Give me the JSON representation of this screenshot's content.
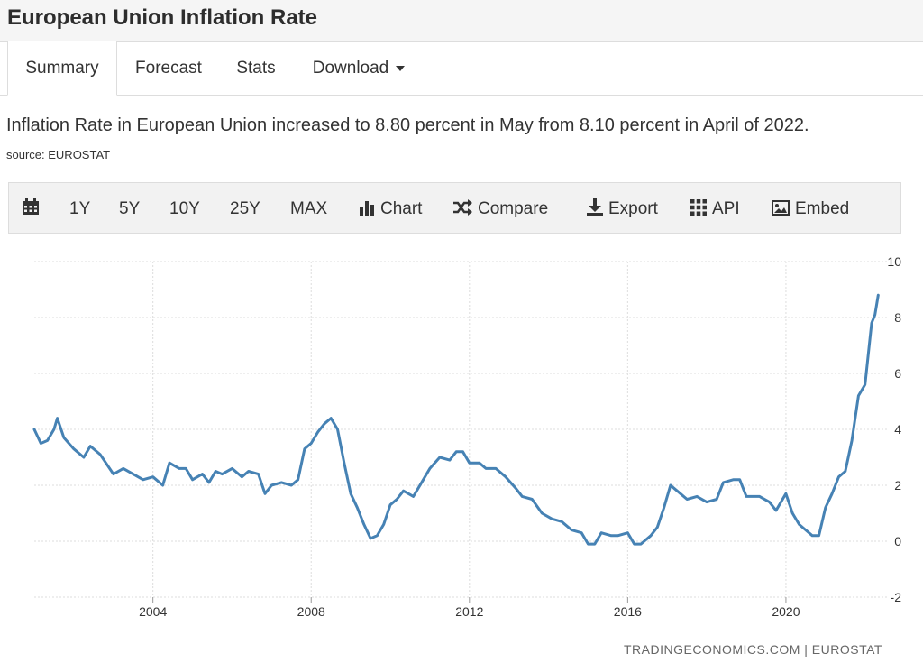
{
  "page_title": "European Union Inflation Rate",
  "tabs": [
    {
      "label": "Summary",
      "active": true
    },
    {
      "label": "Forecast"
    },
    {
      "label": "Stats"
    },
    {
      "label": "Download",
      "dropdown": true
    }
  ],
  "summary_text": "Inflation Rate in European Union increased to 8.80 percent in May from 8.10 percent in April of 2022.",
  "source_text": "source: EUROSTAT",
  "toolbar": {
    "calendar_icon": "calendar-icon",
    "ranges": [
      "1Y",
      "5Y",
      "10Y",
      "25Y",
      "MAX"
    ],
    "chart_label": "Chart",
    "compare_label": "Compare",
    "export_label": "Export",
    "api_label": "API",
    "embed_label": "Embed"
  },
  "credit": "TRADINGECONOMICS.COM | EUROSTAT",
  "colors": {
    "line": "#4682b4",
    "grid": "#dddddd",
    "toolbar_bg": "#f2f2f2"
  },
  "chart_data": {
    "type": "line",
    "title": "",
    "xlabel": "",
    "ylabel": "",
    "x_ticks": [
      "2004",
      "2008",
      "2012",
      "2016",
      "2020"
    ],
    "y_ticks": [
      -2,
      0,
      2,
      4,
      6,
      8,
      10
    ],
    "ylim": [
      -2,
      10
    ],
    "xlim": [
      "2001-01",
      "2022-06"
    ],
    "grid": true,
    "y_axis_position": "right",
    "series": [
      {
        "values": [
          [
            "2001-01",
            4.0
          ],
          [
            "2001-03",
            3.5
          ],
          [
            "2001-05",
            3.6
          ],
          [
            "2001-07",
            4.0
          ],
          [
            "2001-08",
            4.4
          ],
          [
            "2001-10",
            3.7
          ],
          [
            "2002-01",
            3.3
          ],
          [
            "2002-04",
            3.0
          ],
          [
            "2002-06",
            3.4
          ],
          [
            "2002-09",
            3.1
          ],
          [
            "2003-01",
            2.4
          ],
          [
            "2003-04",
            2.6
          ],
          [
            "2003-07",
            2.4
          ],
          [
            "2003-10",
            2.2
          ],
          [
            "2004-01",
            2.3
          ],
          [
            "2004-04",
            2.0
          ],
          [
            "2004-06",
            2.8
          ],
          [
            "2004-09",
            2.6
          ],
          [
            "2004-11",
            2.6
          ],
          [
            "2005-01",
            2.2
          ],
          [
            "2005-04",
            2.4
          ],
          [
            "2005-06",
            2.1
          ],
          [
            "2005-08",
            2.5
          ],
          [
            "2005-10",
            2.4
          ],
          [
            "2006-01",
            2.6
          ],
          [
            "2006-04",
            2.3
          ],
          [
            "2006-06",
            2.5
          ],
          [
            "2006-09",
            2.4
          ],
          [
            "2006-11",
            1.7
          ],
          [
            "2007-01",
            2.0
          ],
          [
            "2007-04",
            2.1
          ],
          [
            "2007-07",
            2.0
          ],
          [
            "2007-09",
            2.2
          ],
          [
            "2007-11",
            3.3
          ],
          [
            "2008-01",
            3.5
          ],
          [
            "2008-03",
            3.9
          ],
          [
            "2008-05",
            4.2
          ],
          [
            "2008-07",
            4.4
          ],
          [
            "2008-09",
            4.0
          ],
          [
            "2008-11",
            2.8
          ],
          [
            "2009-01",
            1.7
          ],
          [
            "2009-03",
            1.2
          ],
          [
            "2009-05",
            0.6
          ],
          [
            "2009-07",
            0.1
          ],
          [
            "2009-09",
            0.2
          ],
          [
            "2009-11",
            0.6
          ],
          [
            "2010-01",
            1.3
          ],
          [
            "2010-03",
            1.5
          ],
          [
            "2010-05",
            1.8
          ],
          [
            "2010-08",
            1.6
          ],
          [
            "2010-11",
            2.2
          ],
          [
            "2011-01",
            2.6
          ],
          [
            "2011-04",
            3.0
          ],
          [
            "2011-07",
            2.9
          ],
          [
            "2011-09",
            3.2
          ],
          [
            "2011-11",
            3.2
          ],
          [
            "2012-01",
            2.8
          ],
          [
            "2012-04",
            2.8
          ],
          [
            "2012-06",
            2.6
          ],
          [
            "2012-09",
            2.6
          ],
          [
            "2012-12",
            2.3
          ],
          [
            "2013-03",
            1.9
          ],
          [
            "2013-05",
            1.6
          ],
          [
            "2013-08",
            1.5
          ],
          [
            "2013-11",
            1.0
          ],
          [
            "2014-02",
            0.8
          ],
          [
            "2014-05",
            0.7
          ],
          [
            "2014-08",
            0.4
          ],
          [
            "2014-11",
            0.3
          ],
          [
            "2015-01",
            -0.1
          ],
          [
            "2015-03",
            -0.1
          ],
          [
            "2015-05",
            0.3
          ],
          [
            "2015-08",
            0.2
          ],
          [
            "2015-10",
            0.2
          ],
          [
            "2016-01",
            0.3
          ],
          [
            "2016-03",
            -0.1
          ],
          [
            "2016-05",
            -0.1
          ],
          [
            "2016-08",
            0.2
          ],
          [
            "2016-10",
            0.5
          ],
          [
            "2016-12",
            1.2
          ],
          [
            "2017-02",
            2.0
          ],
          [
            "2017-04",
            1.8
          ],
          [
            "2017-07",
            1.5
          ],
          [
            "2017-10",
            1.6
          ],
          [
            "2018-01",
            1.4
          ],
          [
            "2018-04",
            1.5
          ],
          [
            "2018-06",
            2.1
          ],
          [
            "2018-09",
            2.2
          ],
          [
            "2018-11",
            2.2
          ],
          [
            "2019-01",
            1.6
          ],
          [
            "2019-03",
            1.6
          ],
          [
            "2019-05",
            1.6
          ],
          [
            "2019-08",
            1.4
          ],
          [
            "2019-10",
            1.1
          ],
          [
            "2020-01",
            1.7
          ],
          [
            "2020-03",
            1.0
          ],
          [
            "2020-05",
            0.6
          ],
          [
            "2020-07",
            0.4
          ],
          [
            "2020-09",
            0.2
          ],
          [
            "2020-11",
            0.2
          ],
          [
            "2021-01",
            1.2
          ],
          [
            "2021-03",
            1.7
          ],
          [
            "2021-05",
            2.3
          ],
          [
            "2021-07",
            2.5
          ],
          [
            "2021-09",
            3.6
          ],
          [
            "2021-11",
            5.2
          ],
          [
            "2022-01",
            5.6
          ],
          [
            "2022-03",
            7.8
          ],
          [
            "2022-04",
            8.1
          ],
          [
            "2022-05",
            8.8
          ]
        ]
      }
    ]
  }
}
